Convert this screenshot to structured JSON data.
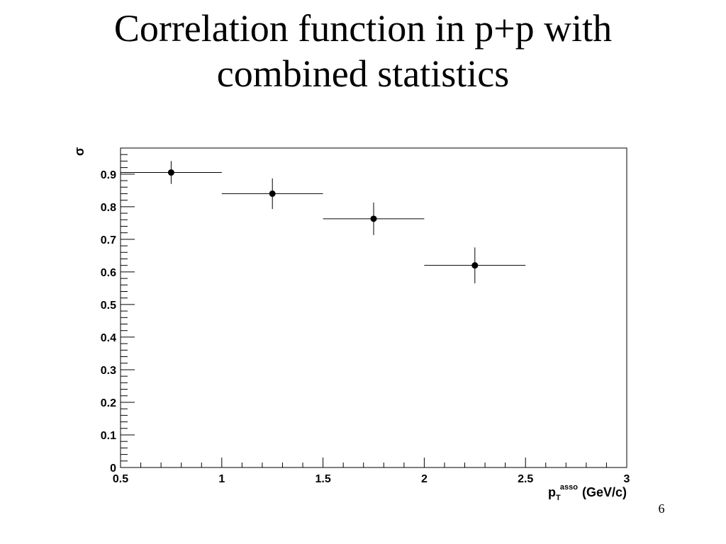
{
  "slide": {
    "title_line1": "Correlation function in p+p with",
    "title_line2": "combined statistics",
    "page_number": "6"
  },
  "chart_data": {
    "type": "scatter",
    "title": "",
    "xlabel_main": "p",
    "xlabel_sub": "T",
    "xlabel_sup": "asso",
    "xlabel_unit": "(GeV/c)",
    "ylabel": "σ",
    "xlim": [
      0.5,
      3
    ],
    "ylim": [
      0,
      0.98
    ],
    "x_ticks": [
      "0.5",
      "1",
      "1.5",
      "2",
      "2.5",
      "3"
    ],
    "y_ticks": [
      "0",
      "0.1",
      "0.2",
      "0.3",
      "0.4",
      "0.5",
      "0.6",
      "0.7",
      "0.8",
      "0.9"
    ],
    "grid": false,
    "series": [
      {
        "x": [
          0.75,
          1.25,
          1.75,
          2.25
        ],
        "x_err": [
          0.25,
          0.25,
          0.25,
          0.25
        ],
        "y": [
          0.905,
          0.84,
          0.763,
          0.62
        ],
        "y_err": [
          0.035,
          0.047,
          0.05,
          0.055
        ]
      }
    ],
    "colors": {
      "marker": "#000000",
      "axis": "#000000"
    }
  }
}
